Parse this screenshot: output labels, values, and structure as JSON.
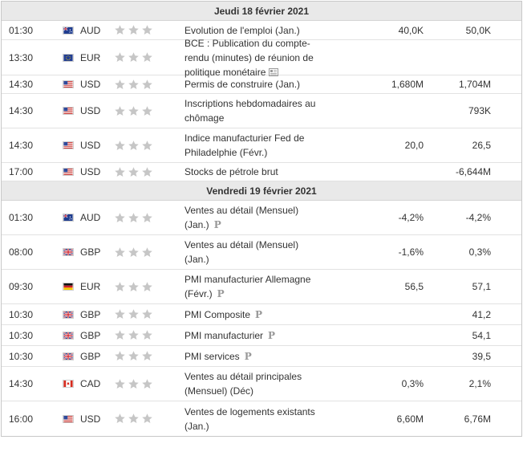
{
  "days": [
    {
      "date": "Jeudi 18 février 2021",
      "events": [
        {
          "time": "01:30",
          "country": "australia",
          "currency": "AUD",
          "title": "Evolution de l'emploi (Jan.)",
          "icon": "",
          "actual": "",
          "forecast": "40,0K",
          "previous": "50,0K"
        },
        {
          "time": "13:30",
          "country": "eurozone",
          "currency": "EUR",
          "title": "BCE : Publication du compte-rendu (minutes) de réunion de politique monétaire",
          "icon": "document-icon",
          "actual": "",
          "forecast": "",
          "previous": ""
        },
        {
          "time": "14:30",
          "country": "usa",
          "currency": "USD",
          "title": "Permis de construire (Jan.)",
          "icon": "",
          "actual": "",
          "forecast": "1,680M",
          "previous": "1,704M"
        },
        {
          "time": "14:30",
          "country": "usa",
          "currency": "USD",
          "title": "Inscriptions hebdomadaires au chômage",
          "icon": "",
          "actual": "",
          "forecast": "",
          "previous": "793K"
        },
        {
          "time": "14:30",
          "country": "usa",
          "currency": "USD",
          "title": "Indice manufacturier Fed de Philadelphie (Févr.)",
          "icon": "",
          "actual": "",
          "forecast": "20,0",
          "previous": "26,5"
        },
        {
          "time": "17:00",
          "country": "usa",
          "currency": "USD",
          "title": "Stocks de pétrole brut",
          "icon": "",
          "actual": "",
          "forecast": "",
          "previous": "-6,644M"
        }
      ]
    },
    {
      "date": "Vendredi 19 février 2021",
      "events": [
        {
          "time": "01:30",
          "country": "australia",
          "currency": "AUD",
          "title": "Ventes au détail (Mensuel) (Jan.)",
          "icon": "p-icon",
          "actual": "",
          "forecast": "-4,2%",
          "previous": "-4,2%"
        },
        {
          "time": "08:00",
          "country": "uk",
          "currency": "GBP",
          "title": "Ventes au détail (Mensuel) (Jan.)",
          "icon": "",
          "actual": "",
          "forecast": "-1,6%",
          "previous": "0,3%"
        },
        {
          "time": "09:30",
          "country": "germany",
          "currency": "EUR",
          "title": "PMI manufacturier Allemagne (Févr.)",
          "icon": "p-icon",
          "actual": "",
          "forecast": "56,5",
          "previous": "57,1"
        },
        {
          "time": "10:30",
          "country": "uk",
          "currency": "GBP",
          "title": "PMI Composite",
          "icon": "p-icon",
          "actual": "",
          "forecast": "",
          "previous": "41,2"
        },
        {
          "time": "10:30",
          "country": "uk",
          "currency": "GBP",
          "title": "PMI manufacturier",
          "icon": "p-icon",
          "actual": "",
          "forecast": "",
          "previous": "54,1"
        },
        {
          "time": "10:30",
          "country": "uk",
          "currency": "GBP",
          "title": "PMI services",
          "icon": "p-icon",
          "actual": "",
          "forecast": "",
          "previous": "39,5"
        },
        {
          "time": "14:30",
          "country": "canada",
          "currency": "CAD",
          "title": "Ventes au détail principales (Mensuel) (Déc)",
          "icon": "",
          "actual": "",
          "forecast": "0,3%",
          "previous": "2,1%"
        },
        {
          "time": "16:00",
          "country": "usa",
          "currency": "USD",
          "title": "Ventes de logements existants (Jan.)",
          "icon": "",
          "actual": "",
          "forecast": "6,60M",
          "previous": "6,76M"
        }
      ]
    }
  ],
  "p_icon_glyph": "P",
  "importance_stars": 3,
  "colors": {
    "star": "#c6c6c6",
    "header_bg": "#e9e9e9",
    "row_border": "#e2e2e2"
  }
}
